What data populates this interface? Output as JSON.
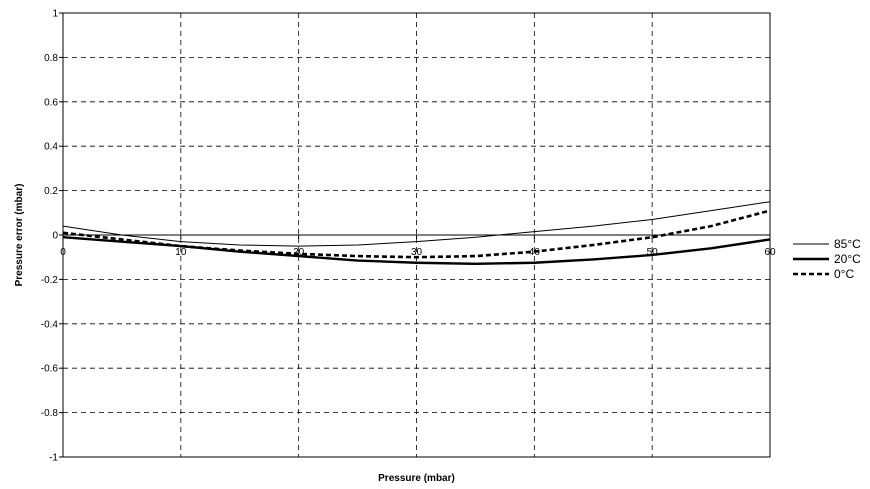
{
  "chart_data": {
    "type": "line",
    "title": "",
    "xlabel": "Pressure (mbar)",
    "ylabel": "Pressure error (mbar)",
    "xlim": [
      0,
      60
    ],
    "ylim": [
      -1,
      1
    ],
    "x_ticks": [
      "0",
      "10",
      "20",
      "30",
      "40",
      "50",
      "60"
    ],
    "y_ticks": [
      "1",
      "0.8",
      "0.6",
      "0.4",
      "0.2",
      "0",
      "-0.2",
      "-0.4",
      "-0.6",
      "-0.8",
      "-1"
    ],
    "grid": true,
    "legend_position": "right",
    "x": [
      0,
      5,
      10,
      15,
      20,
      25,
      30,
      35,
      40,
      45,
      50,
      55,
      60
    ],
    "series": [
      {
        "name": "85°C",
        "style": "thin",
        "values": [
          0.04,
          0.0,
          -0.03,
          -0.045,
          -0.05,
          -0.045,
          -0.03,
          -0.01,
          0.015,
          0.04,
          0.07,
          0.11,
          0.15
        ]
      },
      {
        "name": "20°C",
        "style": "thick",
        "values": [
          -0.01,
          -0.03,
          -0.05,
          -0.075,
          -0.095,
          -0.115,
          -0.125,
          -0.13,
          -0.125,
          -0.11,
          -0.09,
          -0.06,
          -0.02
        ]
      },
      {
        "name": "0°C",
        "style": "dashed",
        "values": [
          0.01,
          -0.02,
          -0.05,
          -0.07,
          -0.085,
          -0.095,
          -0.1,
          -0.095,
          -0.075,
          -0.045,
          -0.01,
          0.04,
          0.11
        ]
      }
    ]
  }
}
